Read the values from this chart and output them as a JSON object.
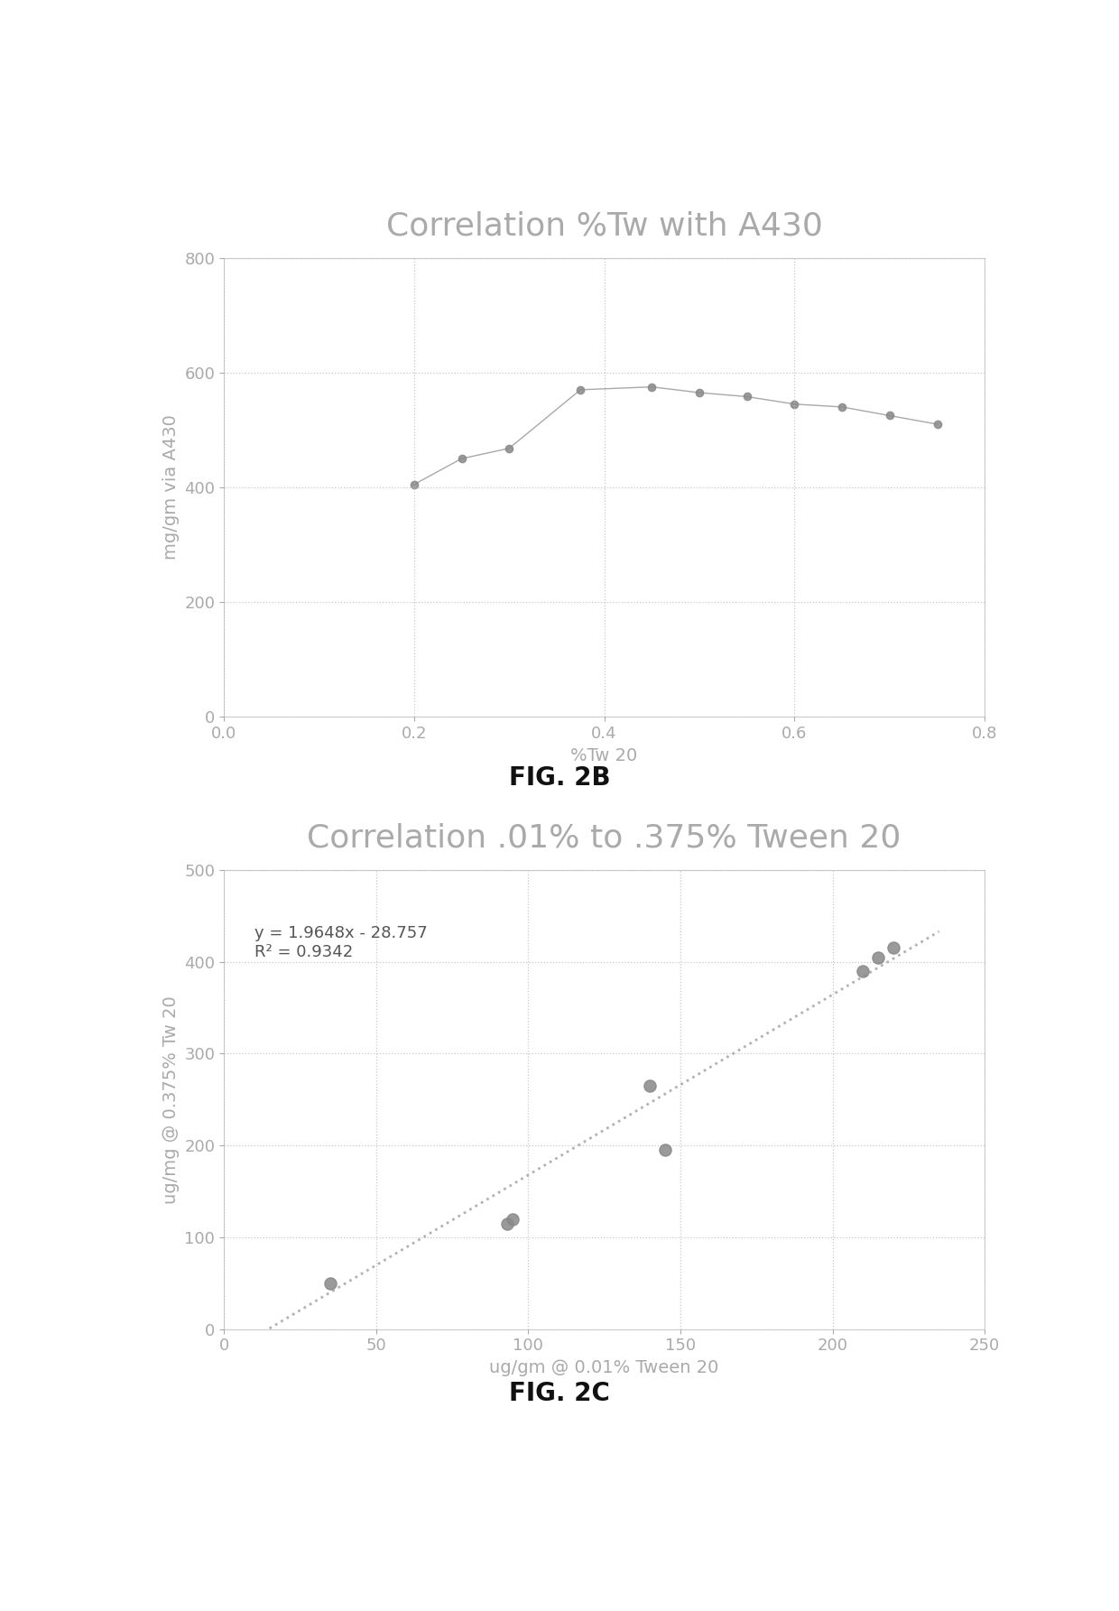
{
  "fig2b": {
    "title": "Correlation %Tw with A430",
    "xlabel": "%Tw 20",
    "ylabel": "mg/gm via A430",
    "x": [
      0.2,
      0.25,
      0.3,
      0.375,
      0.45,
      0.5,
      0.55,
      0.6,
      0.65,
      0.7,
      0.75
    ],
    "y": [
      405,
      450,
      468,
      570,
      575,
      565,
      558,
      545,
      540,
      525,
      510
    ],
    "xlim": [
      0,
      0.8
    ],
    "ylim": [
      0,
      800
    ],
    "xticks": [
      0,
      0.2,
      0.4,
      0.6,
      0.8
    ],
    "yticks": [
      0,
      200,
      400,
      600,
      800
    ],
    "grid_color": "#bbbbbb",
    "line_color": "#999999",
    "marker_color": "#888888",
    "fig_label": "FIG. 2B"
  },
  "fig2c": {
    "title": "Correlation .01% to .375% Tween 20",
    "xlabel": "ug/gm @ 0.01% Tween 20",
    "ylabel": "ug/mg @ 0.375% Tw 20",
    "x": [
      35,
      93,
      95,
      140,
      145,
      210,
      215,
      220
    ],
    "y": [
      50,
      115,
      120,
      265,
      195,
      390,
      405,
      415
    ],
    "xlim": [
      0,
      250
    ],
    "ylim": [
      0,
      500
    ],
    "xticks": [
      0,
      50,
      100,
      150,
      200,
      250
    ],
    "yticks": [
      0,
      100,
      200,
      300,
      400,
      500
    ],
    "equation": "y = 1.9648x - 28.757",
    "r2": "R² = 0.9342",
    "slope": 1.9648,
    "intercept": -28.757,
    "grid_color": "#bbbbbb",
    "marker_color": "#888888",
    "trendline_color": "#aaaaaa",
    "fig_label": "FIG. 2C"
  },
  "background_color": "#ffffff",
  "title_fontsize": 26,
  "axis_label_fontsize": 14,
  "tick_fontsize": 13,
  "fig_label_fontsize": 20,
  "title_color": "#aaaaaa",
  "text_color": "#aaaaaa"
}
